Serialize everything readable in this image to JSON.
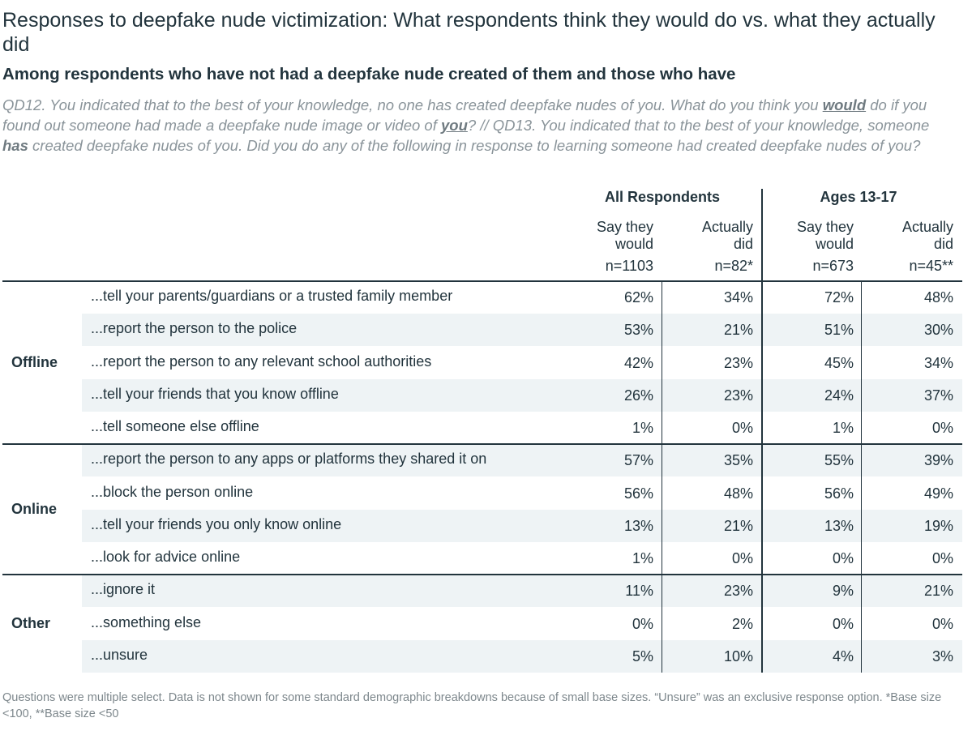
{
  "title": "Responses to deepfake nude victimization: What respondents think they would do vs. what they actually did",
  "subtitle": "Among respondents who have not had a deepfake nude created of them and those who have",
  "question": {
    "p1": "QD12. You indicated that to the best of your knowledge, no one has created deepfake nudes of you. What do you think you ",
    "em1": "would",
    "p2": " do if you found out someone had made a deepfake nude image or video of ",
    "em2": "you",
    "p3": "? // QD13. You indicated that to the best of your knowledge, someone ",
    "em3": "has",
    "p4": " created deepfake nudes of you. Did you do any of the following in response to learning someone had created deepfake nudes of you?"
  },
  "footnote": "Questions were multiple select. Data is not shown for some standard demographic breakdowns because of small base sizes. “Unsure” was an exclusive response option. *Base size <100, **Base size <50",
  "chart_data": {
    "type": "table",
    "column_groups": [
      {
        "label": "All Respondents",
        "columns": [
          {
            "label_line1": "Say they",
            "label_line2": "would",
            "n": "n=1103"
          },
          {
            "label_line1": "Actually",
            "label_line2": "did",
            "n": "n=82*"
          }
        ]
      },
      {
        "label": "Ages 13-17",
        "columns": [
          {
            "label_line1": "Say they",
            "label_line2": "would",
            "n": "n=673"
          },
          {
            "label_line1": "Actually",
            "label_line2": "did",
            "n": "n=45**"
          }
        ]
      }
    ],
    "row_groups": [
      {
        "label": "Offline",
        "rows": [
          {
            "label": "...tell your parents/guardians or a trusted family member",
            "values": [
              "62%",
              "34%",
              "72%",
              "48%"
            ]
          },
          {
            "label": "...report the person to the police",
            "values": [
              "53%",
              "21%",
              "51%",
              "30%"
            ]
          },
          {
            "label": "...report the person to any relevant school authorities",
            "values": [
              "42%",
              "23%",
              "45%",
              "34%"
            ]
          },
          {
            "label": "...tell your friends that you know offline",
            "values": [
              "26%",
              "23%",
              "24%",
              "37%"
            ]
          },
          {
            "label": "...tell someone else offline",
            "values": [
              "1%",
              "0%",
              "1%",
              "0%"
            ]
          }
        ]
      },
      {
        "label": "Online",
        "rows": [
          {
            "label": "...report the person to any apps or platforms they shared it on",
            "values": [
              "57%",
              "35%",
              "55%",
              "39%"
            ]
          },
          {
            "label": "...block the person online",
            "values": [
              "56%",
              "48%",
              "56%",
              "49%"
            ]
          },
          {
            "label": "...tell your friends you only know online",
            "values": [
              "13%",
              "21%",
              "13%",
              "19%"
            ]
          },
          {
            "label": "...look for advice online",
            "values": [
              "1%",
              "0%",
              "0%",
              "0%"
            ]
          }
        ]
      },
      {
        "label": "Other",
        "rows": [
          {
            "label": "...ignore it",
            "values": [
              "11%",
              "23%",
              "9%",
              "21%"
            ]
          },
          {
            "label": "...something else",
            "values": [
              "0%",
              "2%",
              "0%",
              "0%"
            ]
          },
          {
            "label": "...unsure",
            "values": [
              "5%",
              "10%",
              "4%",
              "3%"
            ]
          }
        ]
      }
    ],
    "colors": {
      "text": "#22343d",
      "band": "#eef3f5",
      "muted": "#8a949a"
    }
  }
}
